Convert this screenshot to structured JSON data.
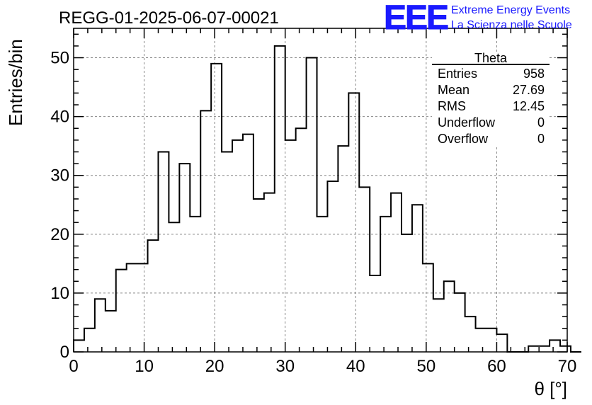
{
  "chart_data": {
    "type": "bar",
    "title": "REGG-01-2025-06-07-00021",
    "xlabel": "θ [°]",
    "ylabel": "Entries/bin",
    "xlim": [
      0,
      70
    ],
    "ylim": [
      0,
      55
    ],
    "x_ticks": [
      "0",
      "10",
      "20",
      "30",
      "40",
      "50",
      "60",
      "70"
    ],
    "y_ticks": [
      "0",
      "10",
      "20",
      "30",
      "40",
      "50"
    ],
    "grid": true,
    "bin_width": 1.5,
    "x_start": 0,
    "values": [
      2,
      4,
      9,
      7,
      14,
      15,
      15,
      19,
      34,
      22,
      32,
      23,
      41,
      49,
      34,
      36,
      37,
      26,
      27,
      52,
      36,
      38,
      50,
      23,
      29,
      35,
      44,
      28,
      13,
      23,
      27,
      20,
      25,
      15,
      9,
      12,
      10,
      6,
      4,
      4,
      3,
      0,
      0,
      1,
      1,
      2,
      1,
      0
    ],
    "stats": {
      "name": "Theta",
      "rows": [
        {
          "label": "Entries",
          "value": "958"
        },
        {
          "label": "Mean",
          "value": "27.69"
        },
        {
          "label": "RMS",
          "value": "12.45"
        },
        {
          "label": "Underflow",
          "value": "0"
        },
        {
          "label": "Overflow",
          "value": "0"
        }
      ]
    }
  },
  "logo": {
    "mark": "EEE",
    "line1": "Extreme Energy Events",
    "line2": "La Scienza nelle Scuole",
    "color": "#1a1aff"
  }
}
